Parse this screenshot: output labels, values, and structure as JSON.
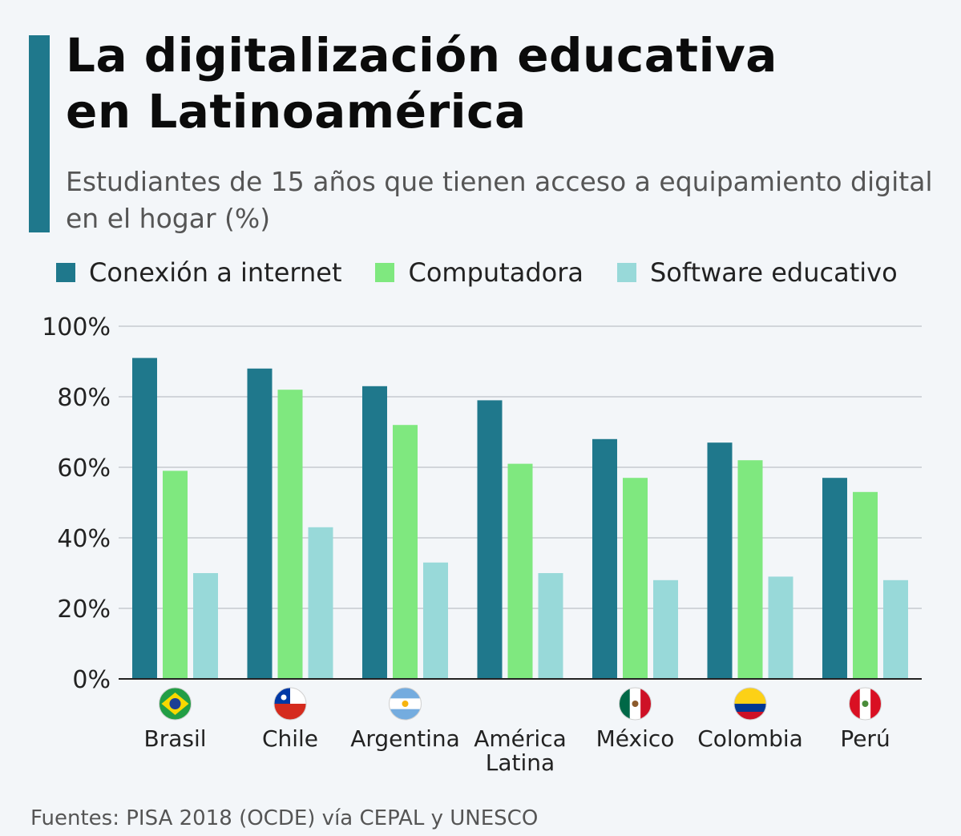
{
  "header": {
    "title": "La digitalización educativa\nen Latinoamérica",
    "subtitle": "Estudiantes de 15 años que tienen acceso a equipamiento digital en el hogar (%)",
    "accent_color": "#1f788c"
  },
  "legend": [
    {
      "label": "Conexión a internet",
      "color": "#1f788c"
    },
    {
      "label": "Computadora",
      "color": "#7fe87f"
    },
    {
      "label": "Software educativo",
      "color": "#98d9d9"
    }
  ],
  "chart_data": {
    "type": "bar",
    "categories": [
      "Brasil",
      "Chile",
      "Argentina",
      "América\nLatina",
      "México",
      "Colombia",
      "Perú"
    ],
    "flags": [
      "brazil-flag-icon",
      "chile-flag-icon",
      "argentina-flag-icon",
      "",
      "mexico-flag-icon",
      "colombia-flag-icon",
      "peru-flag-icon"
    ],
    "series": [
      {
        "name": "Conexión a internet",
        "color": "#1f788c",
        "values": [
          91,
          88,
          83,
          79,
          68,
          67,
          57
        ]
      },
      {
        "name": "Computadora",
        "color": "#7fe87f",
        "values": [
          59,
          82,
          72,
          61,
          57,
          62,
          53
        ]
      },
      {
        "name": "Software educativo",
        "color": "#98d9d9",
        "values": [
          30,
          43,
          33,
          30,
          28,
          29,
          28
        ]
      }
    ],
    "ylim": [
      0,
      100
    ],
    "yticks": [
      "0%",
      "20%",
      "40%",
      "60%",
      "80%",
      "100%"
    ],
    "grid": true,
    "legend_position": "top-left"
  },
  "footer": {
    "source": "Fuentes: PISA 2018 (OCDE) vía CEPAL y UNESCO"
  }
}
